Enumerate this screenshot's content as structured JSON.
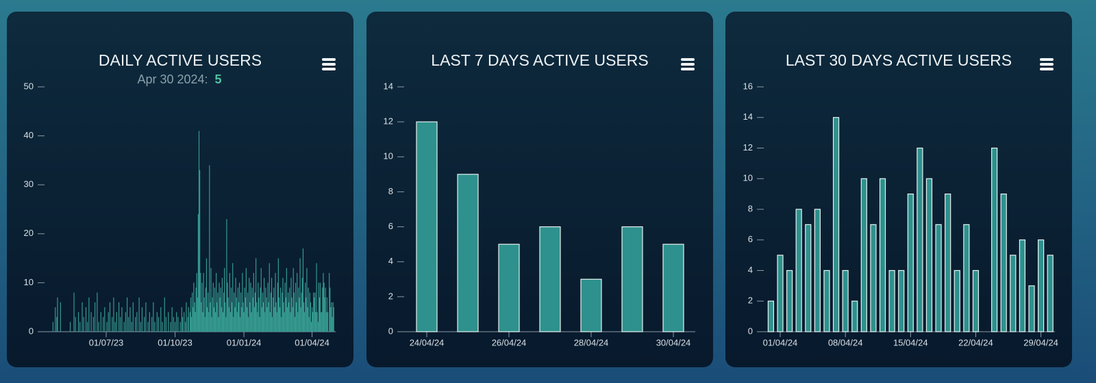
{
  "chart_data": [
    {
      "type": "bar",
      "title": "DAILY ACTIVE USERS",
      "subtitle": {
        "label": "Apr 30 2024:",
        "value": 5
      },
      "color": "#35998f",
      "x": [
        "2023-04-20",
        "2023-04-21",
        "2023-04-22",
        "2023-04-23",
        "2023-04-24",
        "2023-04-25",
        "2023-04-26",
        "2023-04-27",
        "2023-04-28",
        "2023-04-29",
        "2023-04-30",
        "2023-05-01",
        "2023-05-02",
        "2023-05-03",
        "2023-05-04",
        "2023-05-05",
        "2023-05-06",
        "2023-05-07",
        "2023-05-08",
        "2023-05-09",
        "2023-05-10",
        "2023-05-11",
        "2023-05-12",
        "2023-05-13",
        "2023-05-14",
        "2023-05-15",
        "2023-05-16",
        "2023-05-17",
        "2023-05-18",
        "2023-05-19",
        "2023-05-20",
        "2023-05-21",
        "2023-05-22",
        "2023-05-23",
        "2023-05-24",
        "2023-05-25",
        "2023-05-26",
        "2023-05-27",
        "2023-05-28",
        "2023-05-29",
        "2023-05-30",
        "2023-05-31",
        "2023-06-01",
        "2023-06-02",
        "2023-06-03",
        "2023-06-04",
        "2023-06-05",
        "2023-06-06",
        "2023-06-07",
        "2023-06-08",
        "2023-06-09",
        "2023-06-10",
        "2023-06-11",
        "2023-06-12",
        "2023-06-13",
        "2023-06-14",
        "2023-06-15",
        "2023-06-16",
        "2023-06-17",
        "2023-06-18",
        "2023-06-19",
        "2023-06-20",
        "2023-06-21",
        "2023-06-22",
        "2023-06-23",
        "2023-06-24",
        "2023-06-25",
        "2023-06-26",
        "2023-06-27",
        "2023-06-28",
        "2023-06-29",
        "2023-06-30",
        "2023-07-01",
        "2023-07-02",
        "2023-07-03",
        "2023-07-04",
        "2023-07-05",
        "2023-07-06",
        "2023-07-07",
        "2023-07-08",
        "2023-07-09",
        "2023-07-10",
        "2023-07-11",
        "2023-07-12",
        "2023-07-13",
        "2023-07-14",
        "2023-07-15",
        "2023-07-16",
        "2023-07-17",
        "2023-07-18",
        "2023-07-19",
        "2023-07-20",
        "2023-07-21",
        "2023-07-22",
        "2023-07-23",
        "2023-07-24",
        "2023-07-25",
        "2023-07-26",
        "2023-07-27",
        "2023-07-28",
        "2023-07-29",
        "2023-07-30",
        "2023-07-31",
        "2023-08-01",
        "2023-08-02",
        "2023-08-03",
        "2023-08-04",
        "2023-08-05",
        "2023-08-06",
        "2023-08-07",
        "2023-08-08",
        "2023-08-09",
        "2023-08-10",
        "2023-08-11",
        "2023-08-12",
        "2023-08-13",
        "2023-08-14",
        "2023-08-15",
        "2023-08-16",
        "2023-08-17",
        "2023-08-18",
        "2023-08-19",
        "2023-08-20",
        "2023-08-21",
        "2023-08-22",
        "2023-08-23",
        "2023-08-24",
        "2023-08-25",
        "2023-08-26",
        "2023-08-27",
        "2023-08-28",
        "2023-08-29",
        "2023-08-30",
        "2023-08-31",
        "2023-09-01",
        "2023-09-02",
        "2023-09-03",
        "2023-09-04",
        "2023-09-05",
        "2023-09-06",
        "2023-09-07",
        "2023-09-08",
        "2023-09-09",
        "2023-09-10",
        "2023-09-11",
        "2023-09-12",
        "2023-09-13",
        "2023-09-14",
        "2023-09-15",
        "2023-09-16",
        "2023-09-17",
        "2023-09-18",
        "2023-09-19",
        "2023-09-20",
        "2023-09-21",
        "2023-09-22",
        "2023-09-23",
        "2023-09-24",
        "2023-09-25",
        "2023-09-26",
        "2023-09-27",
        "2023-09-28",
        "2023-09-29",
        "2023-09-30",
        "2023-10-01",
        "2023-10-02",
        "2023-10-03",
        "2023-10-04",
        "2023-10-05",
        "2023-10-06",
        "2023-10-07",
        "2023-10-08",
        "2023-10-09",
        "2023-10-10",
        "2023-10-11",
        "2023-10-12",
        "2023-10-13",
        "2023-10-14",
        "2023-10-15",
        "2023-10-16",
        "2023-10-17",
        "2023-10-18",
        "2023-10-19",
        "2023-10-20",
        "2023-10-21",
        "2023-10-22",
        "2023-10-23",
        "2023-10-24",
        "2023-10-25",
        "2023-10-26",
        "2023-10-27",
        "2023-10-28",
        "2023-10-29",
        "2023-10-30",
        "2023-10-31",
        "2023-11-01",
        "2023-11-02",
        "2023-11-03",
        "2023-11-04",
        "2023-11-05",
        "2023-11-06",
        "2023-11-07",
        "2023-11-08",
        "2023-11-09",
        "2023-11-10",
        "2023-11-11",
        "2023-11-12",
        "2023-11-13",
        "2023-11-14",
        "2023-11-15",
        "2023-11-16",
        "2023-11-17",
        "2023-11-18",
        "2023-11-19",
        "2023-11-20",
        "2023-11-21",
        "2023-11-22",
        "2023-11-23",
        "2023-11-24",
        "2023-11-25",
        "2023-11-26",
        "2023-11-27",
        "2023-11-28",
        "2023-11-29",
        "2023-11-30",
        "2023-12-01",
        "2023-12-02",
        "2023-12-03",
        "2023-12-04",
        "2023-12-05",
        "2023-12-06",
        "2023-12-07",
        "2023-12-08",
        "2023-12-09",
        "2023-12-10",
        "2023-12-11",
        "2023-12-12",
        "2023-12-13",
        "2023-12-14",
        "2023-12-15",
        "2023-12-16",
        "2023-12-17",
        "2023-12-18",
        "2023-12-19",
        "2023-12-20",
        "2023-12-21",
        "2023-12-22",
        "2023-12-23",
        "2023-12-24",
        "2023-12-25",
        "2023-12-26",
        "2023-12-27",
        "2023-12-28",
        "2023-12-29",
        "2023-12-30",
        "2023-12-31",
        "2024-01-01",
        "2024-01-02",
        "2024-01-03",
        "2024-01-04",
        "2024-01-05",
        "2024-01-06",
        "2024-01-07",
        "2024-01-08",
        "2024-01-09",
        "2024-01-10",
        "2024-01-11",
        "2024-01-12",
        "2024-01-13",
        "2024-01-14",
        "2024-01-15",
        "2024-01-16",
        "2024-01-17",
        "2024-01-18",
        "2024-01-19",
        "2024-01-20",
        "2024-01-21",
        "2024-01-22",
        "2024-01-23",
        "2024-01-24",
        "2024-01-25",
        "2024-01-26",
        "2024-01-27",
        "2024-01-28",
        "2024-01-29",
        "2024-01-30",
        "2024-01-31",
        "2024-02-01",
        "2024-02-02",
        "2024-02-03",
        "2024-02-04",
        "2024-02-05",
        "2024-02-06",
        "2024-02-07",
        "2024-02-08",
        "2024-02-09",
        "2024-02-10",
        "2024-02-11",
        "2024-02-12",
        "2024-02-13",
        "2024-02-14",
        "2024-02-15",
        "2024-02-16",
        "2024-02-17",
        "2024-02-18",
        "2024-02-19",
        "2024-02-20",
        "2024-02-21",
        "2024-02-22",
        "2024-02-23",
        "2024-02-24",
        "2024-02-25",
        "2024-02-26",
        "2024-02-27",
        "2024-02-28",
        "2024-02-29",
        "2024-03-01",
        "2024-03-02",
        "2024-03-03",
        "2024-03-04",
        "2024-03-05",
        "2024-03-06",
        "2024-03-07",
        "2024-03-08",
        "2024-03-09",
        "2024-03-10",
        "2024-03-11",
        "2024-03-12",
        "2024-03-13",
        "2024-03-14",
        "2024-03-15",
        "2024-03-16",
        "2024-03-17",
        "2024-03-18",
        "2024-03-19",
        "2024-03-20",
        "2024-03-21",
        "2024-03-22",
        "2024-03-23",
        "2024-03-24",
        "2024-03-25",
        "2024-03-26",
        "2024-03-27",
        "2024-03-28",
        "2024-03-29",
        "2024-03-30",
        "2024-03-31",
        "2024-04-01",
        "2024-04-02",
        "2024-04-03",
        "2024-04-04",
        "2024-04-05",
        "2024-04-06",
        "2024-04-07",
        "2024-04-08",
        "2024-04-09",
        "2024-04-10",
        "2024-04-11",
        "2024-04-12",
        "2024-04-13",
        "2024-04-14",
        "2024-04-15",
        "2024-04-16",
        "2024-04-17",
        "2024-04-18",
        "2024-04-19",
        "2024-04-20",
        "2024-04-21",
        "2024-04-22",
        "2024-04-23",
        "2024-04-24",
        "2024-04-25",
        "2024-04-26",
        "2024-04-27",
        "2024-04-28",
        "2024-04-29",
        "2024-04-30"
      ],
      "values": [
        0,
        2,
        0,
        0,
        5,
        0,
        3,
        7,
        0,
        0,
        0,
        6,
        0,
        0,
        0,
        0,
        0,
        0,
        0,
        0,
        0,
        0,
        0,
        0,
        2,
        0,
        0,
        0,
        0,
        8,
        0,
        3,
        0,
        0,
        0,
        4,
        0,
        2,
        0,
        0,
        6,
        0,
        3,
        0,
        0,
        5,
        0,
        2,
        0,
        7,
        0,
        0,
        4,
        0,
        0,
        3,
        0,
        6,
        0,
        0,
        8,
        0,
        2,
        0,
        0,
        4,
        0,
        0,
        3,
        0,
        5,
        0,
        0,
        2,
        0,
        4,
        0,
        6,
        0,
        0,
        3,
        0,
        7,
        0,
        2,
        0,
        4,
        0,
        0,
        6,
        0,
        3,
        0,
        5,
        0,
        0,
        2,
        0,
        4,
        0,
        7,
        0,
        3,
        0,
        5,
        0,
        2,
        0,
        6,
        0,
        0,
        3,
        0,
        4,
        0,
        0,
        7,
        0,
        2,
        0,
        5,
        0,
        0,
        3,
        0,
        6,
        0,
        0,
        2,
        0,
        4,
        0,
        0,
        3,
        0,
        6,
        0,
        2,
        0,
        0,
        4,
        0,
        3,
        0,
        0,
        5,
        0,
        2,
        0,
        0,
        7,
        0,
        3,
        0,
        0,
        4,
        0,
        0,
        2,
        0,
        5,
        0,
        3,
        0,
        2,
        0,
        4,
        0,
        3,
        0,
        0,
        2,
        0,
        5,
        3,
        0,
        4,
        0,
        2,
        6,
        0,
        3,
        5,
        0,
        4,
        7,
        3,
        8,
        5,
        10,
        6,
        4,
        9,
        12,
        7,
        24,
        41,
        33,
        12,
        6,
        10,
        4,
        12,
        7,
        3,
        9,
        15,
        5,
        8,
        4,
        34,
        6,
        13,
        3,
        7,
        10,
        5,
        9,
        4,
        12,
        6,
        8,
        3,
        10,
        7,
        9,
        5,
        11,
        4,
        8,
        13,
        6,
        3,
        23,
        10,
        7,
        5,
        12,
        4,
        9,
        6,
        14,
        3,
        8,
        5,
        11,
        7,
        4,
        9,
        6,
        10,
        3,
        8,
        5,
        12,
        6,
        4,
        9,
        7,
        13,
        5,
        8,
        3,
        11,
        6,
        10,
        4,
        9,
        7,
        12,
        5,
        8,
        15,
        6,
        4,
        10,
        7,
        3,
        9,
        13,
        5,
        8,
        6,
        11,
        4,
        9,
        7,
        5,
        10,
        6,
        14,
        4,
        8,
        11,
        3,
        7,
        9,
        5,
        12,
        6,
        4,
        10,
        15,
        7,
        5,
        9,
        3,
        8,
        11,
        6,
        4,
        10,
        7,
        13,
        5,
        8,
        6,
        9,
        4,
        11,
        7,
        5,
        13,
        8,
        3,
        10,
        6,
        12,
        4,
        9,
        7,
        15,
        5,
        8,
        11,
        17,
        6,
        4,
        10,
        7,
        13,
        5,
        9,
        3,
        8,
        6,
        2,
        5,
        4,
        8,
        7,
        8,
        4,
        14,
        4,
        2,
        10,
        7,
        10,
        4,
        4,
        9,
        12,
        10,
        7,
        9,
        4,
        7,
        4,
        0,
        12,
        9,
        5,
        6,
        3,
        6,
        5
      ],
      "xlim": [
        "2023-04-01",
        "2024-05-03"
      ],
      "xticks": [
        {
          "value": "2023-07-01",
          "label": "01/07/23"
        },
        {
          "value": "2023-10-01",
          "label": "01/10/23"
        },
        {
          "value": "2024-01-01",
          "label": "01/01/24"
        },
        {
          "value": "2024-04-01",
          "label": "01/04/24"
        }
      ],
      "ylim": [
        0,
        50
      ],
      "yticks": [
        0,
        10,
        20,
        30,
        40,
        50
      ]
    },
    {
      "type": "bar",
      "title": "LAST 7 DAYS ACTIVE USERS",
      "color": "#2e918e",
      "edgecolor": "#e6f2f0",
      "categories": [
        "24/04/24",
        null,
        "26/04/24",
        null,
        "28/04/24",
        null,
        "30/04/24"
      ],
      "values": [
        12,
        9,
        5,
        6,
        3,
        6,
        5
      ],
      "ylim": [
        0,
        14
      ],
      "yticks": [
        0,
        2,
        4,
        6,
        8,
        10,
        12,
        14
      ]
    },
    {
      "type": "bar",
      "title": "LAST 30 DAYS ACTIVE USERS",
      "color": "#2e918e",
      "edgecolor": "#e6f2f0",
      "x": [
        "2024-03-31",
        "2024-04-01",
        "2024-04-02",
        "2024-04-03",
        "2024-04-04",
        "2024-04-05",
        "2024-04-06",
        "2024-04-07",
        "2024-04-08",
        "2024-04-09",
        "2024-04-10",
        "2024-04-11",
        "2024-04-12",
        "2024-04-13",
        "2024-04-14",
        "2024-04-15",
        "2024-04-16",
        "2024-04-17",
        "2024-04-18",
        "2024-04-19",
        "2024-04-20",
        "2024-04-21",
        "2024-04-22",
        "2024-04-23",
        "2024-04-24",
        "2024-04-25",
        "2024-04-26",
        "2024-04-27",
        "2024-04-28",
        "2024-04-29",
        "2024-04-30"
      ],
      "values": [
        2,
        5,
        4,
        8,
        7,
        8,
        4,
        14,
        4,
        2,
        10,
        7,
        10,
        4,
        4,
        9,
        12,
        10,
        7,
        9,
        4,
        7,
        4,
        0,
        12,
        9,
        5,
        6,
        3,
        6,
        5
      ],
      "xlim": [
        "2024-03-30",
        "2024-05-01"
      ],
      "xticks": [
        {
          "value": "2024-04-01",
          "label": "01/04/24"
        },
        {
          "value": "2024-04-08",
          "label": "08/04/24"
        },
        {
          "value": "2024-04-15",
          "label": "15/04/24"
        },
        {
          "value": "2024-04-22",
          "label": "22/04/24"
        },
        {
          "value": "2024-04-29",
          "label": "29/04/24"
        }
      ],
      "ylim": [
        0,
        16
      ],
      "yticks": [
        0,
        2,
        4,
        6,
        8,
        10,
        12,
        14,
        16
      ]
    }
  ]
}
